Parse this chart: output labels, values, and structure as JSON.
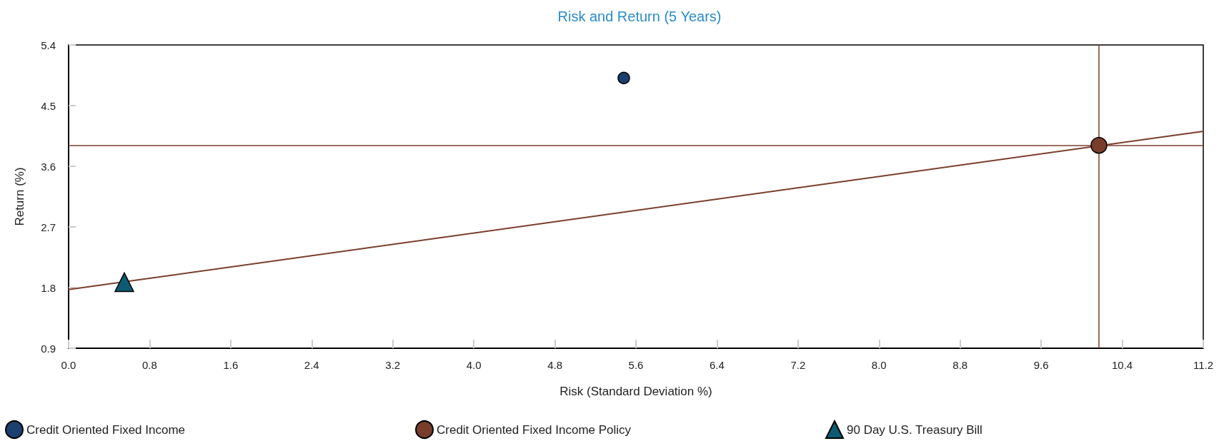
{
  "chart_data": {
    "type": "scatter",
    "title": "Risk and Return (5 Years)",
    "xlabel": "Risk (Standard Deviation %)",
    "ylabel": "Return (%)",
    "series": [
      {
        "name": "Credit Oriented Fixed Income",
        "color": "#1b3f6f",
        "marker": "circle",
        "x": [
          5.48
        ],
        "values": [
          4.91
        ]
      },
      {
        "name": "Credit Oriented Fixed Income Policy",
        "color": "#783d2b",
        "marker": "circle",
        "x": [
          10.17
        ],
        "values": [
          3.91
        ]
      },
      {
        "name": "90 Day U.S. Treasury Bill",
        "color": "#0d5a72",
        "marker": "triangle",
        "x": [
          0.55
        ],
        "values": [
          1.88
        ]
      },
      {
        "type": "line",
        "color": "#7a3e2c",
        "marker": "none",
        "x": [
          0,
          11.2
        ],
        "values": [
          1.77,
          4.12
        ]
      }
    ],
    "xlim": [
      0,
      11.2
    ],
    "xticks": [
      {
        "value": 0,
        "label": "0.0"
      },
      0.8,
      1.6,
      2.4,
      3.2,
      {
        "value": 4,
        "label": "4.0"
      },
      4.8,
      5.6,
      6.4,
      7.2,
      {
        "value": 8,
        "label": "8.0"
      },
      8.8,
      9.6,
      10.4,
      11.2
    ],
    "ylim": [
      0.9,
      5.4
    ],
    "yticks": [
      0.9,
      1.8,
      2.7,
      3.6,
      4.5,
      5.4
    ],
    "ref_lines": [
      {
        "axis": "y",
        "value": 3.91,
        "color": "#7a3e2c"
      },
      {
        "axis": "x",
        "value": 10.17,
        "color": "#7a3e2c"
      }
    ],
    "grid": false,
    "legend": "bottom"
  }
}
